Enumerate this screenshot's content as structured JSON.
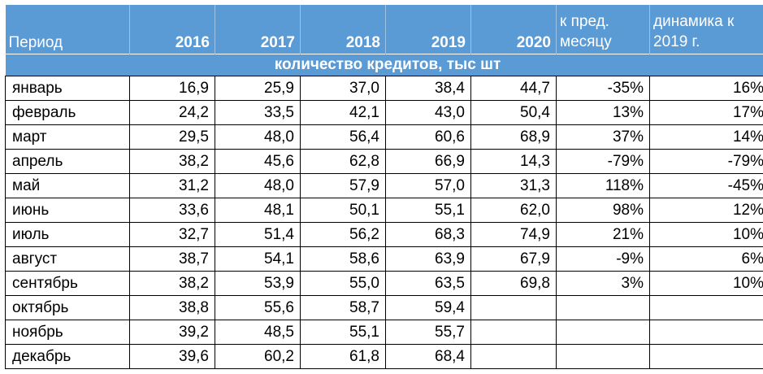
{
  "header": {
    "period": "Период",
    "years": [
      "2016",
      "2017",
      "2018",
      "2019",
      "2020"
    ],
    "mom_line1": "к пред.",
    "mom_line2": "месяцу",
    "yoy_line1": "динамика к",
    "yoy_line2": "2019 г."
  },
  "subheader": "количество кредитов, тыс шт",
  "rows": [
    {
      "month": "январь",
      "v2016": "16,9",
      "v2017": "25,9",
      "v2018": "37,0",
      "v2019": "38,4",
      "v2020": "44,7",
      "mom": "-35%",
      "yoy": "16%"
    },
    {
      "month": "февраль",
      "v2016": "24,2",
      "v2017": "33,5",
      "v2018": "42,1",
      "v2019": "43,0",
      "v2020": "50,4",
      "mom": "13%",
      "yoy": "17%"
    },
    {
      "month": "март",
      "v2016": "29,5",
      "v2017": "48,0",
      "v2018": "56,4",
      "v2019": "60,6",
      "v2020": "68,9",
      "mom": "37%",
      "yoy": "14%"
    },
    {
      "month": "апрель",
      "v2016": "38,2",
      "v2017": "45,6",
      "v2018": "62,8",
      "v2019": "66,9",
      "v2020": "14,3",
      "mom": "-79%",
      "yoy": "-79%"
    },
    {
      "month": "май",
      "v2016": "31,2",
      "v2017": "48,0",
      "v2018": "57,9",
      "v2019": "57,0",
      "v2020": "31,3",
      "mom": "118%",
      "yoy": "-45%"
    },
    {
      "month": "июнь",
      "v2016": "33,6",
      "v2017": "48,1",
      "v2018": "50,1",
      "v2019": "55,1",
      "v2020": "62,0",
      "mom": "98%",
      "yoy": "12%"
    },
    {
      "month": "июль",
      "v2016": "32,7",
      "v2017": "51,4",
      "v2018": "56,2",
      "v2019": "68,3",
      "v2020": "74,9",
      "mom": "21%",
      "yoy": "10%"
    },
    {
      "month": "август",
      "v2016": "38,7",
      "v2017": "54,1",
      "v2018": "58,6",
      "v2019": "63,9",
      "v2020": "67,9",
      "mom": "-9%",
      "yoy": "6%"
    },
    {
      "month": "сентябрь",
      "v2016": "38,2",
      "v2017": "53,9",
      "v2018": "55,0",
      "v2019": "63,5",
      "v2020": "69,8",
      "mom": "3%",
      "yoy": "10%"
    },
    {
      "month": "октябрь",
      "v2016": "38,8",
      "v2017": "55,6",
      "v2018": "58,7",
      "v2019": "59,4",
      "v2020": "",
      "mom": "",
      "yoy": ""
    },
    {
      "month": "ноябрь",
      "v2016": "39,2",
      "v2017": "48,5",
      "v2018": "55,1",
      "v2019": "55,7",
      "v2020": "",
      "mom": "",
      "yoy": ""
    },
    {
      "month": "декабрь",
      "v2016": "39,6",
      "v2017": "60,2",
      "v2018": "61,8",
      "v2019": "68,4",
      "v2020": "",
      "mom": "",
      "yoy": ""
    }
  ],
  "colors": {
    "header_bg": "#5b9bd5",
    "header_text": "#ffffff"
  }
}
